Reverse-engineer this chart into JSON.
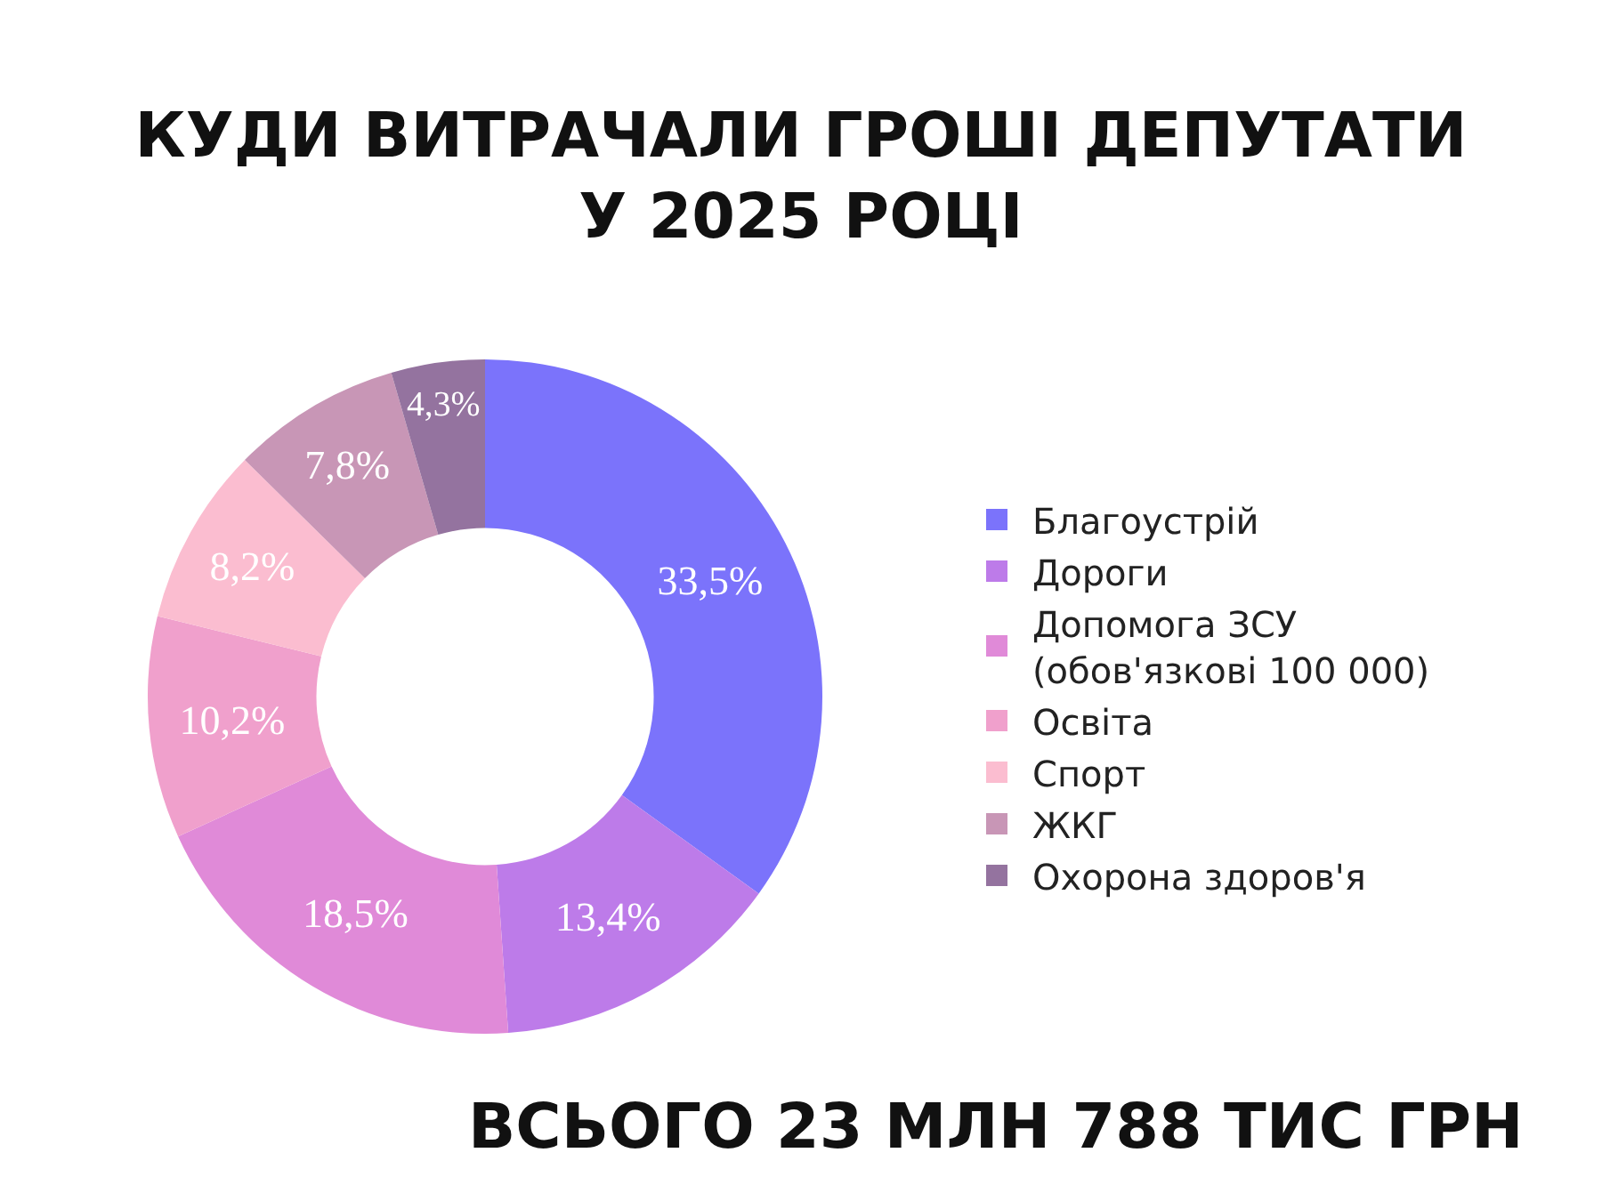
{
  "chart_data": {
    "type": "donut",
    "title": "КУДИ ВИТРАЧАЛИ ГРОШІ ДЕПУТАТИ У 2025 РОЦІ",
    "categories": [
      "Благоустрій",
      "Дороги",
      "Допомога ЗСУ (обов'язкові 100 000)",
      "Освіта",
      "Спорт",
      "ЖКГ",
      "Охорона здоров'я"
    ],
    "values": [
      33.5,
      13.4,
      18.5,
      10.2,
      8.2,
      7.8,
      4.3
    ],
    "value_labels": [
      "33,5%",
      "13,4%",
      "18,5%",
      "10,2%",
      "8,2%",
      "7,8%",
      "4,3%"
    ],
    "colors": [
      "#7b73fb",
      "#bd7be9",
      "#e08ad8",
      "#f0a0cc",
      "#fbbdd0",
      "#c896b6",
      "#94739f"
    ],
    "legend": "right",
    "annotations": [
      "ВСЬОГО 23 МЛН 788 ТИС ГРН"
    ]
  }
}
